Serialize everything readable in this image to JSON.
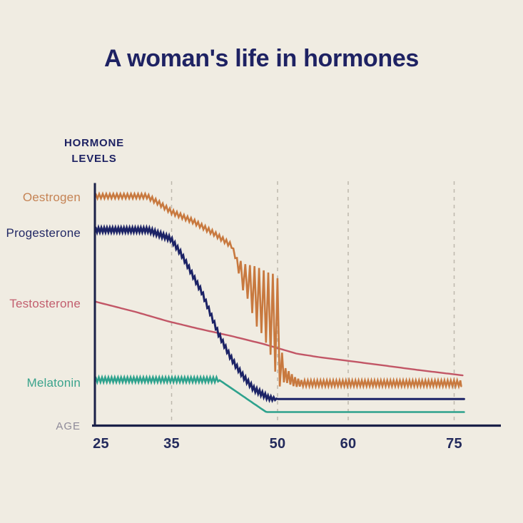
{
  "title": "A woman's life in hormones",
  "y_axis_title": "HORMONE\nLEVELS",
  "x_axis_title": "AGE",
  "colors": {
    "background": "#f0ece2",
    "title_text": "#1e2263",
    "axis": "#1a2048",
    "gridline": "#bdb8ad",
    "tick_text": "#232a5c",
    "age_label_text": "#8e8a99"
  },
  "chart_data": {
    "type": "line",
    "title": "A woman's life in hormones",
    "xlabel": "AGE",
    "ylabel": "HORMONE LEVELS",
    "x_range": [
      24.25,
      76.5
    ],
    "ylim": [
      0,
      100
    ],
    "x_ticks": [
      25,
      35,
      50,
      60,
      75
    ],
    "gridline_ages": [
      35,
      50,
      60,
      75
    ],
    "grid": "vertical-dashed",
    "legend_position": "left-of-curves",
    "y_axis_numeric_labels": false,
    "series": [
      {
        "name": "Testosterone",
        "slug": "testosterone",
        "color": "#c25666",
        "label_color": "#c25e6e",
        "stroke_width": 2.4,
        "age_start": 24.25,
        "age_end": 76.2,
        "centerline": [
          [
            24.25,
            51.3
          ],
          [
            30,
            47
          ],
          [
            34.6,
            43.1
          ],
          [
            39,
            40
          ],
          [
            43.6,
            37
          ],
          [
            48,
            33.8
          ],
          [
            52.7,
            29.8
          ],
          [
            56.2,
            28.2
          ],
          [
            60,
            26.8
          ],
          [
            65.3,
            24.8
          ],
          [
            70,
            23
          ],
          [
            76.2,
            20.8
          ]
        ],
        "amplitude": [
          [
            24.25,
            0
          ],
          [
            76.2,
            0
          ]
        ],
        "period": [
          [
            24.25,
            0.8
          ],
          [
            76.2,
            0.8
          ]
        ]
      },
      {
        "name": "Melatonin",
        "slug": "melatonin",
        "color": "#2ea28d",
        "label_color": "#3aa38c",
        "stroke_width": 2.6,
        "age_start": 24.25,
        "age_end": 76.4,
        "centerline": [
          [
            24.25,
            19
          ],
          [
            41.7,
            19
          ],
          [
            48.4,
            5.6
          ],
          [
            76.4,
            5.6
          ]
        ],
        "amplitude": [
          [
            24.25,
            1.0
          ],
          [
            41.5,
            1.0
          ],
          [
            41.8,
            0
          ],
          [
            76.4,
            0
          ]
        ],
        "period": [
          [
            24.25,
            0.45
          ],
          [
            76.4,
            0.45
          ]
        ]
      },
      {
        "name": "Progesterone",
        "slug": "progesterone",
        "color": "#1c2366",
        "label_color": "#242a66",
        "stroke_width": 3,
        "age_start": 24.25,
        "age_end": 76.4,
        "centerline": [
          [
            24.25,
            81
          ],
          [
            31.7,
            81
          ],
          [
            33,
            79.5
          ],
          [
            34.9,
            77.3
          ],
          [
            36.3,
            71.4
          ],
          [
            37.3,
            66.1
          ],
          [
            38.3,
            60.5
          ],
          [
            39.3,
            55.2
          ],
          [
            40.1,
            49.3
          ],
          [
            40.9,
            43.4
          ],
          [
            41.6,
            38.3
          ],
          [
            42.4,
            33.6
          ],
          [
            43.3,
            28.6
          ],
          [
            44.1,
            24.8
          ],
          [
            45.3,
            19.8
          ],
          [
            46.6,
            15.3
          ],
          [
            47.7,
            13.3
          ],
          [
            48.7,
            11.5
          ],
          [
            49.6,
            11
          ],
          [
            76.4,
            11
          ]
        ],
        "amplitude": [
          [
            24.25,
            0.95
          ],
          [
            48.3,
            0.95
          ],
          [
            49.4,
            0.7
          ],
          [
            50,
            0
          ],
          [
            76.4,
            0
          ]
        ],
        "period": [
          [
            24.25,
            0.4
          ],
          [
            76.4,
            0.4
          ]
        ]
      },
      {
        "name": "Oestrogen",
        "slug": "oestrogen",
        "color": "#c8793f",
        "label_color": "#c58354",
        "stroke_width": 2.6,
        "age_start": 24.25,
        "age_end": 76.0,
        "centerline": [
          [
            24.25,
            95
          ],
          [
            31.5,
            95
          ],
          [
            33,
            92.5
          ],
          [
            35,
            88.5
          ],
          [
            38,
            84.7
          ],
          [
            41,
            79.6
          ],
          [
            43.5,
            74.5
          ],
          [
            44.5,
            66
          ],
          [
            45.2,
            61
          ],
          [
            46,
            59
          ],
          [
            46.8,
            54
          ],
          [
            47.6,
            52
          ],
          [
            48.5,
            48.5
          ],
          [
            49.3,
            45
          ],
          [
            50,
            39.5
          ],
          [
            50.35,
            35
          ],
          [
            50.7,
            21.5
          ],
          [
            51.3,
            20.5
          ],
          [
            52.5,
            18
          ],
          [
            53.5,
            17.5
          ],
          [
            76,
            17.5
          ]
        ],
        "amplitude": [
          [
            24.25,
            0.95
          ],
          [
            44.2,
            0.95
          ],
          [
            44.5,
            3
          ],
          [
            45.2,
            6
          ],
          [
            46,
            7.5
          ],
          [
            46.8,
            12
          ],
          [
            47.6,
            13
          ],
          [
            48.5,
            15
          ],
          [
            49.3,
            18
          ],
          [
            50,
            21.5
          ],
          [
            50.35,
            19
          ],
          [
            50.7,
            3.5
          ],
          [
            51.3,
            2.8
          ],
          [
            52.5,
            2
          ],
          [
            53.5,
            1.2
          ],
          [
            76,
            1.2
          ]
        ],
        "period": [
          [
            24.25,
            0.5
          ],
          [
            44.4,
            0.5
          ],
          [
            44.6,
            0.65
          ],
          [
            50.4,
            0.65
          ],
          [
            50.8,
            0.45
          ],
          [
            76,
            0.45
          ]
        ]
      }
    ]
  }
}
